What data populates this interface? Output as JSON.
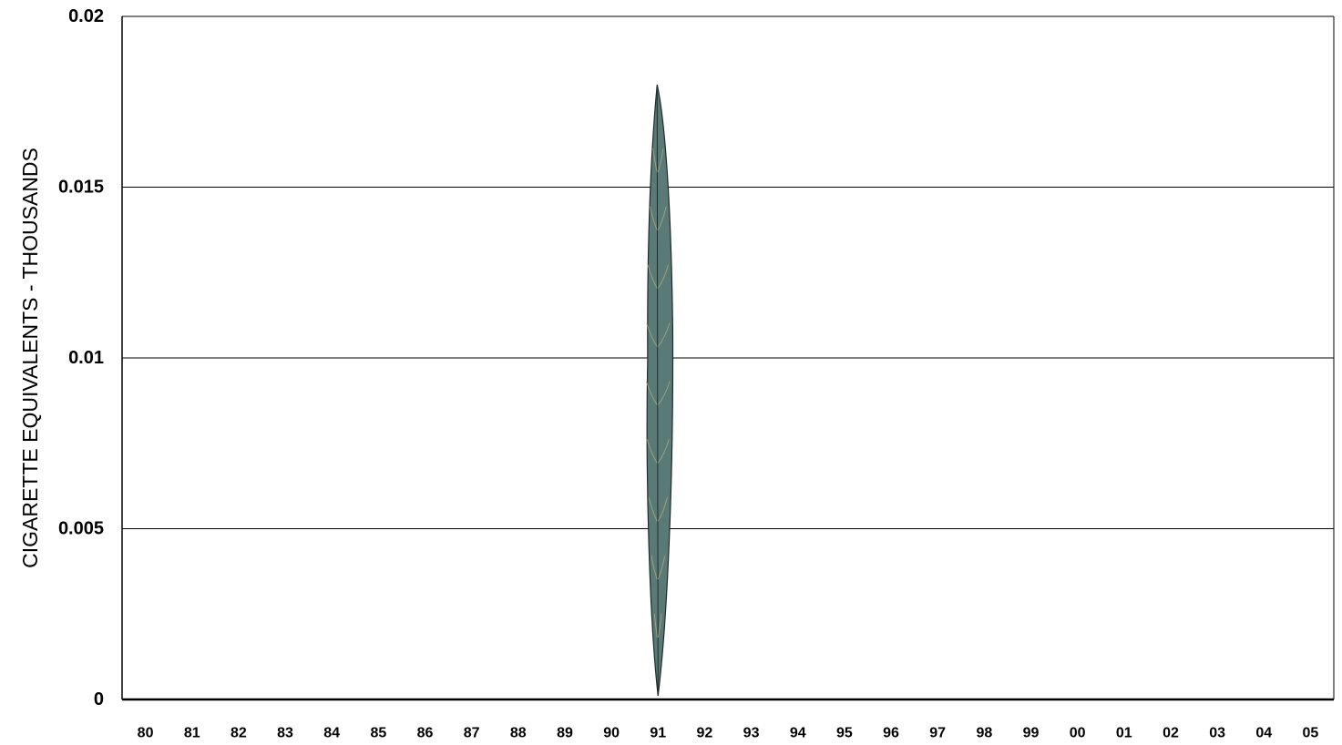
{
  "chart_data": {
    "type": "bar",
    "title": "",
    "xlabel": "",
    "ylabel": "CIGARETTE  EQUIVALENTS  -   THOUSANDS",
    "ylim": [
      0,
      0.02
    ],
    "yticks": [
      "0",
      "0.005",
      "0.01",
      "0.015",
      "0.02"
    ],
    "grid": true,
    "bar_style": "tobacco-leaf",
    "colors": {
      "leaf_fill": "#5a7a78",
      "leaf_stroke": "#1f2b2a",
      "leaf_veins": "#b7b27a",
      "grid": "#000000"
    },
    "categories": [
      "80",
      "81",
      "82",
      "83",
      "84",
      "85",
      "86",
      "87",
      "88",
      "89",
      "90",
      "91",
      "92",
      "93",
      "94",
      "95",
      "96",
      "97",
      "98",
      "99",
      "00",
      "01",
      "02",
      "03",
      "04",
      "05"
    ],
    "values": [
      0,
      0,
      0,
      0,
      0,
      0,
      0,
      0,
      0,
      0,
      0,
      0.018,
      0,
      0,
      0,
      0,
      0,
      0,
      0,
      0,
      0,
      0,
      0,
      0,
      0,
      0
    ]
  }
}
